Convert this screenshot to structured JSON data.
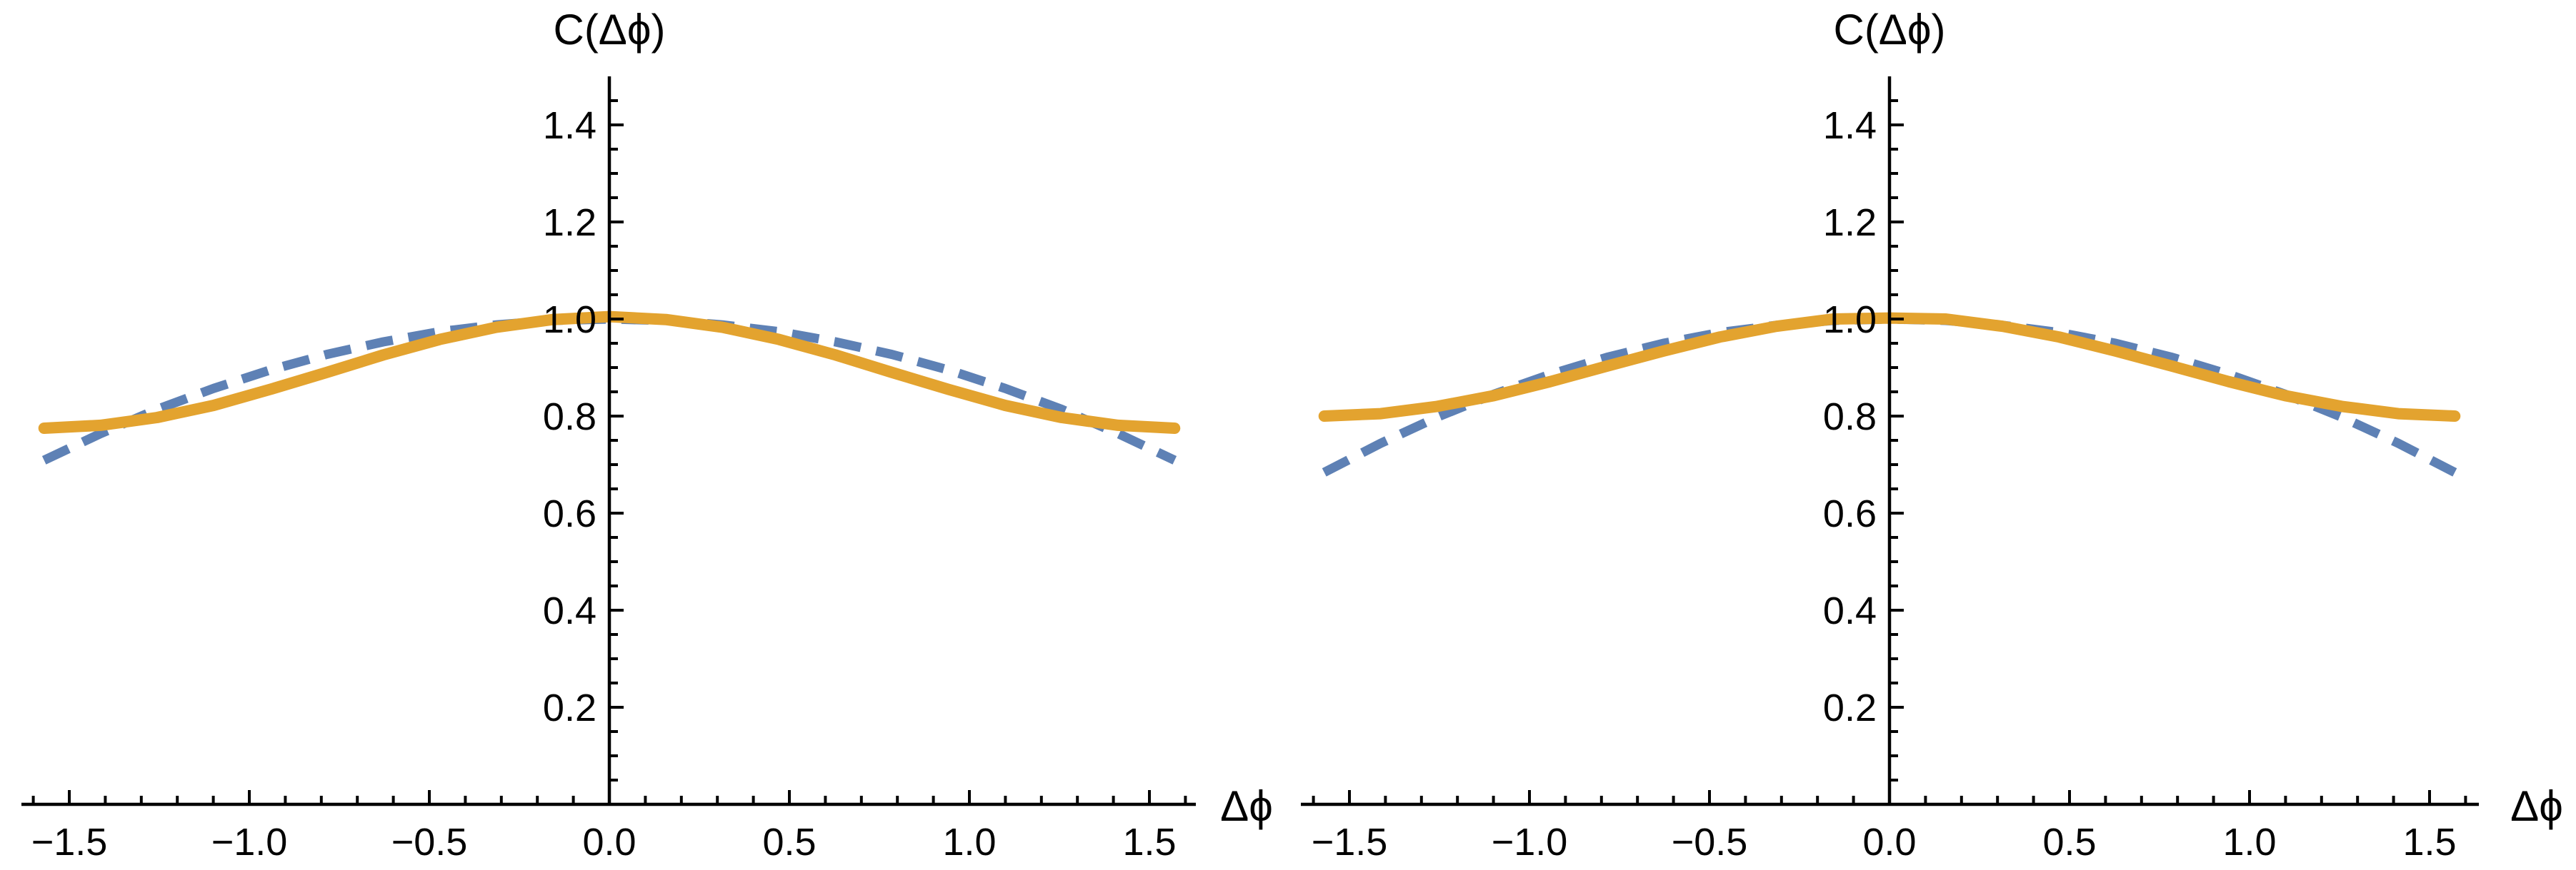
{
  "page": {
    "background": "#ffffff",
    "axis_color": "#000000",
    "text_color": "#000000"
  },
  "chart_data": [
    {
      "type": "line",
      "title": "C(Δϕ)",
      "xlabel": "Δϕ",
      "ylabel": "",
      "xlim": [
        -1.63,
        1.63
      ],
      "ylim": [
        0,
        1.5
      ],
      "grid": false,
      "legend": null,
      "x_axis": {
        "major_ticks": [
          {
            "value": -1.5,
            "label": "−1.5"
          },
          {
            "value": -1.0,
            "label": "−1.0"
          },
          {
            "value": -0.5,
            "label": "−0.5"
          },
          {
            "value": 0.0,
            "label": "0.0"
          },
          {
            "value": 0.5,
            "label": "0.5"
          },
          {
            "value": 1.0,
            "label": "1.0"
          },
          {
            "value": 1.5,
            "label": "1.5"
          }
        ],
        "minor_tick_step": 0.1,
        "minor_tick_range": [
          -1.6,
          1.6
        ]
      },
      "y_axis": {
        "major_ticks": [
          {
            "value": 0.2,
            "label": "0.2"
          },
          {
            "value": 0.4,
            "label": "0.4"
          },
          {
            "value": 0.6,
            "label": "0.6"
          },
          {
            "value": 0.8,
            "label": "0.8"
          },
          {
            "value": 1.0,
            "label": "1.0"
          },
          {
            "value": 1.2,
            "label": "1.2"
          },
          {
            "value": 1.4,
            "label": "1.4"
          }
        ],
        "minor_tick_step": 0.05,
        "minor_tick_range": [
          0.05,
          1.45
        ]
      },
      "x": [
        -1.57,
        -1.413,
        -1.256,
        -1.099,
        -0.942,
        -0.785,
        -0.628,
        -0.471,
        -0.314,
        -0.157,
        0,
        0.157,
        0.314,
        0.471,
        0.628,
        0.785,
        0.942,
        1.099,
        1.256,
        1.413,
        1.57
      ],
      "series": [
        {
          "name": "dashed-curve",
          "style": "dashed",
          "color": "#5E81B5",
          "stroke_width": 13,
          "y": [
            0.709,
            0.764,
            0.814,
            0.857,
            0.895,
            0.927,
            0.953,
            0.974,
            0.988,
            0.997,
            1.0,
            0.997,
            0.988,
            0.974,
            0.953,
            0.927,
            0.895,
            0.857,
            0.814,
            0.764,
            0.709
          ]
        },
        {
          "name": "solid-curve",
          "style": "solid",
          "color": "#E3A32F",
          "stroke_width": 16,
          "y": [
            0.775,
            0.781,
            0.797,
            0.822,
            0.855,
            0.89,
            0.926,
            0.958,
            0.983,
            0.999,
            1.005,
            0.999,
            0.983,
            0.958,
            0.926,
            0.89,
            0.855,
            0.822,
            0.797,
            0.781,
            0.775
          ]
        }
      ]
    },
    {
      "type": "line",
      "title": "C(Δϕ)",
      "xlabel": "Δϕ",
      "ylabel": "",
      "xlim": [
        -1.63,
        1.63
      ],
      "ylim": [
        0,
        1.5
      ],
      "grid": false,
      "legend": null,
      "x_axis": {
        "major_ticks": [
          {
            "value": -1.5,
            "label": "−1.5"
          },
          {
            "value": -1.0,
            "label": "−1.0"
          },
          {
            "value": -0.5,
            "label": "−0.5"
          },
          {
            "value": 0.0,
            "label": "0.0"
          },
          {
            "value": 0.5,
            "label": "0.5"
          },
          {
            "value": 1.0,
            "label": "1.0"
          },
          {
            "value": 1.5,
            "label": "1.5"
          }
        ],
        "minor_tick_step": 0.1,
        "minor_tick_range": [
          -1.6,
          1.6
        ]
      },
      "y_axis": {
        "major_ticks": [
          {
            "value": 0.2,
            "label": "0.2"
          },
          {
            "value": 0.4,
            "label": "0.4"
          },
          {
            "value": 0.6,
            "label": "0.6"
          },
          {
            "value": 0.8,
            "label": "0.8"
          },
          {
            "value": 1.0,
            "label": "1.0"
          },
          {
            "value": 1.2,
            "label": "1.2"
          },
          {
            "value": 1.4,
            "label": "1.4"
          }
        ],
        "minor_tick_step": 0.05,
        "minor_tick_range": [
          0.05,
          1.45
        ]
      },
      "x": [
        -1.57,
        -1.413,
        -1.256,
        -1.099,
        -0.942,
        -0.785,
        -0.628,
        -0.471,
        -0.314,
        -0.157,
        0,
        0.157,
        0.314,
        0.471,
        0.628,
        0.785,
        0.942,
        1.099,
        1.256,
        1.413,
        1.57
      ],
      "series": [
        {
          "name": "dashed-curve",
          "style": "dashed",
          "color": "#5E81B5",
          "stroke_width": 13,
          "y": [
            0.684,
            0.744,
            0.798,
            0.845,
            0.886,
            0.921,
            0.95,
            0.972,
            0.987,
            0.997,
            1.0,
            0.997,
            0.987,
            0.972,
            0.95,
            0.921,
            0.886,
            0.845,
            0.798,
            0.744,
            0.684
          ]
        },
        {
          "name": "solid-curve",
          "style": "solid",
          "color": "#E3A32F",
          "stroke_width": 16,
          "y": [
            0.8,
            0.805,
            0.82,
            0.842,
            0.871,
            0.903,
            0.934,
            0.963,
            0.985,
            1.0,
            1.002,
            1.0,
            0.985,
            0.963,
            0.934,
            0.903,
            0.871,
            0.842,
            0.82,
            0.805,
            0.8
          ]
        }
      ]
    }
  ]
}
